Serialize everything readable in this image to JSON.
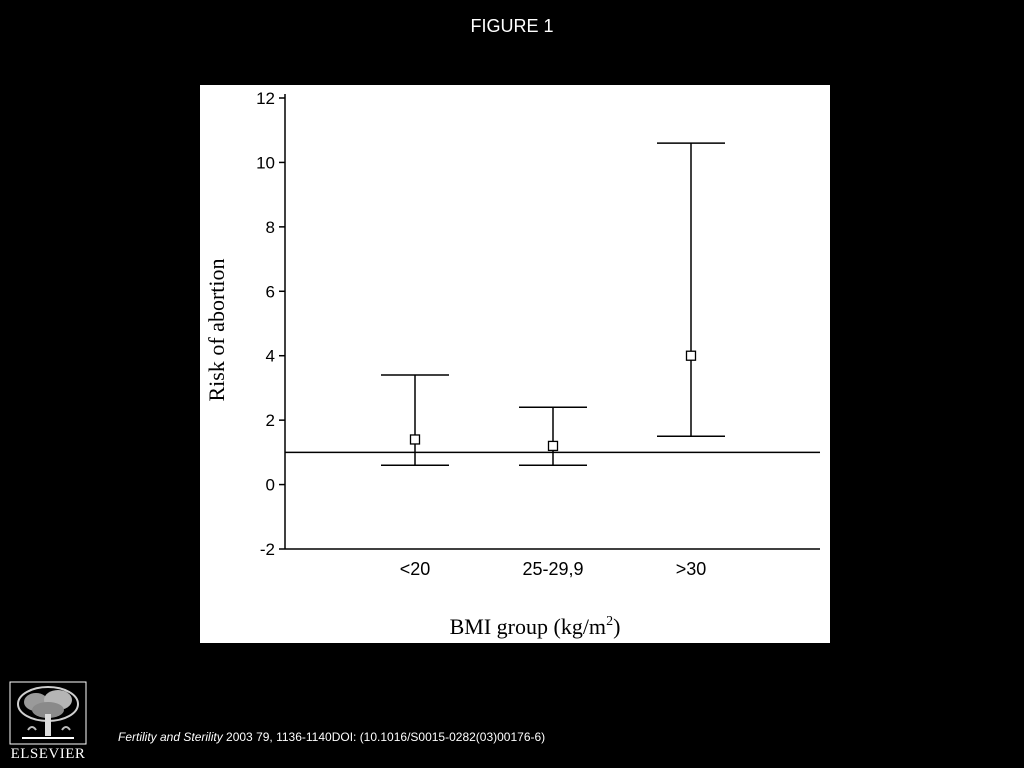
{
  "slide": {
    "title": "FIGURE 1",
    "citation_journal": "Fertility and Sterility",
    "citation_rest": " 2003 79, 1136-1140DOI: (10.1016/S0015-0282(03)00176-6)",
    "publisher": "ELSEVIER"
  },
  "colors": {
    "background": "#000000",
    "panel": "#ffffff",
    "ink": "#000000"
  },
  "icons": {
    "publisher_logo": "elsevier-tree-icon"
  },
  "chart_data": {
    "type": "scatter",
    "title": "",
    "xlabel": "BMI group (kg/m2)",
    "xlabel_main": "BMI group (kg/m",
    "xlabel_sup": "2",
    "xlabel_end": ")",
    "ylabel": "Risk of abortion",
    "categories": [
      "<20",
      "25-29,9",
      ">30"
    ],
    "series": [
      {
        "point_estimate": [
          1.4,
          1.2,
          4.0
        ],
        "ci_lower": [
          0.6,
          0.6,
          1.5
        ],
        "ci_upper": [
          3.4,
          2.4,
          10.6
        ]
      }
    ],
    "reference_line": 1.0,
    "ylim": [
      -2,
      12
    ],
    "yticks": [
      12,
      10,
      8,
      6,
      4,
      2,
      0,
      -2
    ],
    "grid": false,
    "legend": "none"
  }
}
